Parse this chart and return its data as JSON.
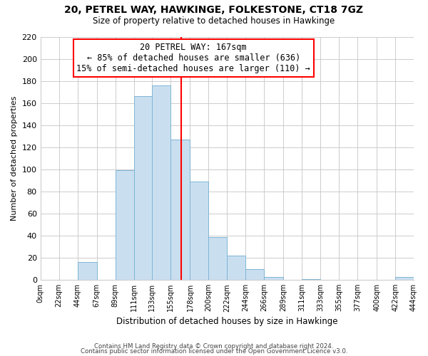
{
  "title": "20, PETREL WAY, HAWKINGE, FOLKESTONE, CT18 7GZ",
  "subtitle": "Size of property relative to detached houses in Hawkinge",
  "xlabel": "Distribution of detached houses by size in Hawkinge",
  "ylabel": "Number of detached properties",
  "bar_left_edges": [
    0,
    22,
    44,
    67,
    89,
    111,
    133,
    155,
    178,
    200,
    222,
    244,
    266,
    289,
    311,
    333,
    355,
    377,
    400,
    422
  ],
  "bar_widths": [
    22,
    22,
    23,
    22,
    22,
    22,
    22,
    23,
    22,
    22,
    22,
    22,
    23,
    22,
    22,
    22,
    22,
    23,
    22,
    22
  ],
  "bar_heights": [
    0,
    0,
    16,
    0,
    99,
    166,
    176,
    127,
    89,
    39,
    22,
    10,
    3,
    0,
    1,
    0,
    0,
    0,
    0,
    3
  ],
  "bar_color": "#c9dff0",
  "bar_edgecolor": "#7fb4d4",
  "tick_labels": [
    "0sqm",
    "22sqm",
    "44sqm",
    "67sqm",
    "89sqm",
    "111sqm",
    "133sqm",
    "155sqm",
    "178sqm",
    "200sqm",
    "222sqm",
    "244sqm",
    "266sqm",
    "289sqm",
    "311sqm",
    "333sqm",
    "355sqm",
    "377sqm",
    "400sqm",
    "422sqm",
    "444sqm"
  ],
  "vline_x": 167,
  "vline_color": "red",
  "ylim": [
    0,
    220
  ],
  "yticks": [
    0,
    20,
    40,
    60,
    80,
    100,
    120,
    140,
    160,
    180,
    200,
    220
  ],
  "annotation_title": "20 PETREL WAY: 167sqm",
  "annotation_line1": "← 85% of detached houses are smaller (636)",
  "annotation_line2": "15% of semi-detached houses are larger (110) →",
  "footer1": "Contains HM Land Registry data © Crown copyright and database right 2024.",
  "footer2": "Contains public sector information licensed under the Open Government Licence v3.0.",
  "bg_color": "#ffffff",
  "grid_color": "#cccccc"
}
